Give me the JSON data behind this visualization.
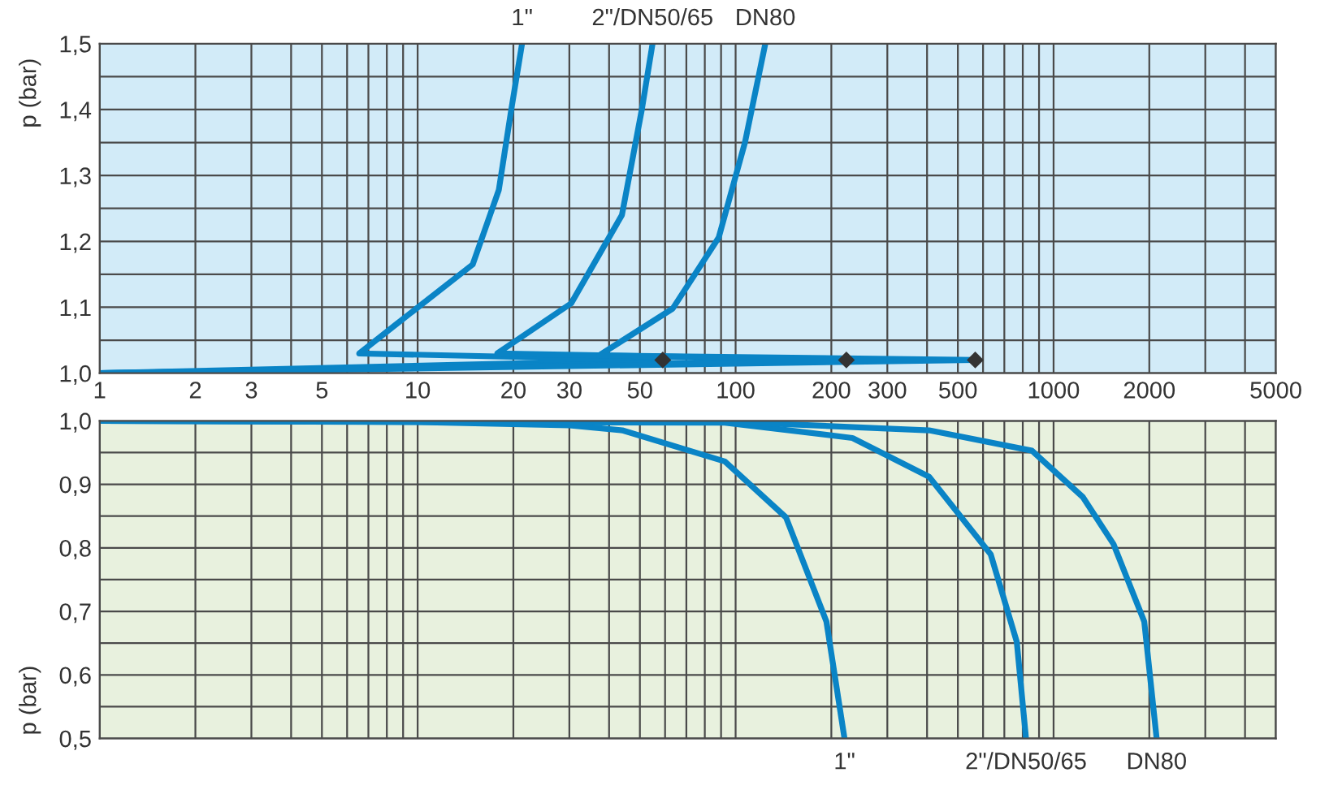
{
  "chart_data": [
    {
      "type": "line",
      "ylabel": "p (bar)",
      "log": "x",
      "grid": true,
      "legend": false,
      "marker": "none",
      "line_style": "solid",
      "tick_labels": "xy",
      "xlim": [
        1,
        5000
      ],
      "xticks": [
        1,
        2,
        3,
        5,
        10,
        20,
        30,
        50,
        100,
        200,
        300,
        500,
        1000,
        2000,
        5000
      ],
      "ylim": [
        1.0,
        1.5
      ],
      "yticks": [
        {
          "value": 1.0,
          "label": "1,0"
        },
        {
          "value": 1.1,
          "label": "1,1"
        },
        {
          "value": 1.2,
          "label": "1,2"
        },
        {
          "value": 1.3,
          "label": "1,3"
        },
        {
          "value": 1.4,
          "label": "1,4"
        },
        {
          "value": 1.5,
          "label": "1,5"
        }
      ],
      "series": [
        {
          "name": "1\"",
          "color": "#0a84c6",
          "x": [
            1,
            59,
            6.55,
            8.55,
            14.9,
            18.0,
            19.7,
            21.3
          ],
          "values": [
            1.0,
            1.02,
            1.03,
            1.074,
            1.165,
            1.278,
            1.4,
            1.5
          ]
        },
        {
          "name": "2\"/DN50/65",
          "color": "#0a84c6",
          "x": [
            1,
            223,
            17.8,
            30.4,
            43.9,
            50.7,
            54.8
          ],
          "values": [
            1.0,
            1.02,
            1.03,
            1.106,
            1.24,
            1.4,
            1.5
          ]
        },
        {
          "name": "DN80",
          "color": "#0a84c6",
          "x": [
            1,
            567,
            37.2,
            63.4,
            88.5,
            107,
            124
          ],
          "values": [
            1.0,
            1.02,
            1.027,
            1.098,
            1.206,
            1.35,
            1.5
          ]
        },
        {
          "type": "scatter",
          "marker": "diamond",
          "color": "#333333",
          "x": [
            59,
            223,
            567
          ],
          "values": [
            1.02,
            1.02,
            1.02
          ]
        }
      ]
    },
    {
      "type": "line",
      "ylabel": "p (bar)",
      "log": "x",
      "grid": true,
      "legend": false,
      "marker": "none",
      "line_style": "solid",
      "tick_labels": "y",
      "xlim": [
        1,
        5000
      ],
      "xticks": [
        1,
        2,
        3,
        5,
        10,
        20,
        30,
        50,
        100,
        200,
        300,
        500,
        1000,
        2000,
        5000
      ],
      "ylim": [
        0.5,
        1.0
      ],
      "yticks": [
        {
          "value": 0.5,
          "label": "0,5"
        },
        {
          "value": 0.6,
          "label": "0,6"
        },
        {
          "value": 0.7,
          "label": "0,7"
        },
        {
          "value": 0.8,
          "label": "0,8"
        },
        {
          "value": 0.9,
          "label": "0,9"
        },
        {
          "value": 1.0,
          "label": "1,0"
        }
      ],
      "series": [
        {
          "name": "1\"",
          "color": "#0a84c6",
          "x": [
            1,
            10,
            30,
            44,
            92.5,
            144,
            193,
            220
          ],
          "values": [
            1.0,
            0.998,
            0.993,
            0.985,
            0.936,
            0.848,
            0.684,
            0.5
          ]
        },
        {
          "name": "2\"/DN50/65",
          "color": "#0a84c6",
          "x": [
            1,
            92.5,
            233,
            406,
            634,
            766,
            819
          ],
          "values": [
            1.0,
            0.997,
            0.973,
            0.912,
            0.79,
            0.652,
            0.5
          ]
        },
        {
          "name": "DN80",
          "color": "#0a84c6",
          "x": [
            1,
            100,
            406,
            855,
            1236,
            1543,
            1928,
            2109
          ],
          "values": [
            1.0,
            0.998,
            0.985,
            0.953,
            0.88,
            0.806,
            0.684,
            0.5
          ]
        }
      ]
    }
  ]
}
